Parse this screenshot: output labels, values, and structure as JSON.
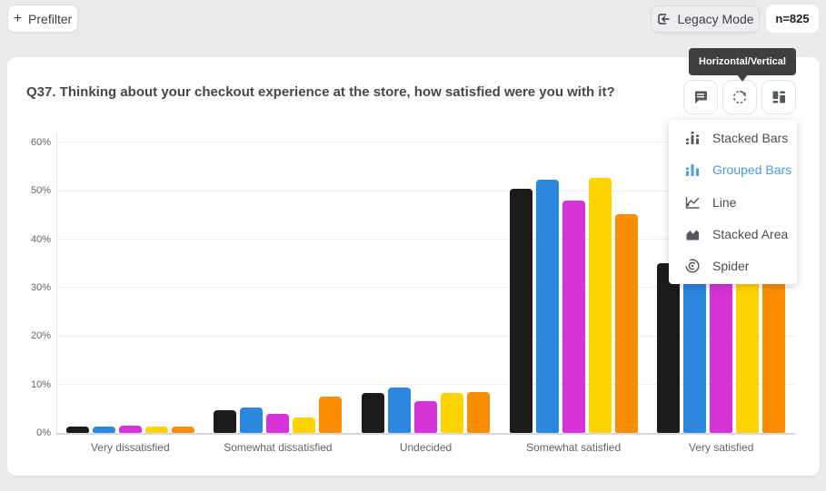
{
  "topbar": {
    "prefilter_label": "Prefilter",
    "prefilter_plus": "+",
    "legacy_mode_label": "Legacy Mode",
    "sample_badge": "n=825"
  },
  "card": {
    "title": "Q37. Thinking about your checkout experience at the store, how satisfied were you with it?",
    "tooltip": "Horizontal/Vertical"
  },
  "chart_menu": {
    "selected_color": "#459be5",
    "items": [
      {
        "label": "Stacked Bars",
        "icon": "stacked-bars-icon",
        "selected": false
      },
      {
        "label": "Grouped Bars",
        "icon": "grouped-bars-icon",
        "selected": true
      },
      {
        "label": "Line",
        "icon": "line-chart-icon",
        "selected": false
      },
      {
        "label": "Stacked Area",
        "icon": "stacked-area-icon",
        "selected": false
      },
      {
        "label": "Spider",
        "icon": "spider-chart-icon",
        "selected": false
      }
    ]
  },
  "chart_data": {
    "type": "bar",
    "mode": "grouped",
    "categories": [
      "Very dissatisfied",
      "Somewhat dissatisfied",
      "Undecided",
      "Somewhat satisfied",
      "Very satisfied"
    ],
    "series": [
      {
        "name": "black",
        "color": "#1b1b1d",
        "values": [
          1.4,
          4.8,
          8.2,
          50.4,
          35.0
        ]
      },
      {
        "name": "blue",
        "color": "#2b86de",
        "values": [
          1.3,
          5.3,
          9.4,
          52.3,
          34.0
        ]
      },
      {
        "name": "magenta",
        "color": "#d633d8",
        "values": [
          1.6,
          3.9,
          6.6,
          47.9,
          33.2
        ]
      },
      {
        "name": "yellow",
        "color": "#ffd300",
        "values": [
          1.4,
          3.3,
          8.2,
          52.7,
          33.6
        ]
      },
      {
        "name": "orange",
        "color": "#fb8d00",
        "values": [
          1.3,
          7.5,
          8.4,
          45.2,
          32.6
        ]
      }
    ],
    "ylim": [
      0,
      60
    ],
    "yticks": [
      0,
      10,
      20,
      30,
      40,
      50,
      60
    ],
    "ytick_labels": [
      "0%",
      "10%",
      "20%",
      "30%",
      "40%",
      "50%",
      "60%"
    ],
    "grid": true,
    "legend": "none"
  }
}
